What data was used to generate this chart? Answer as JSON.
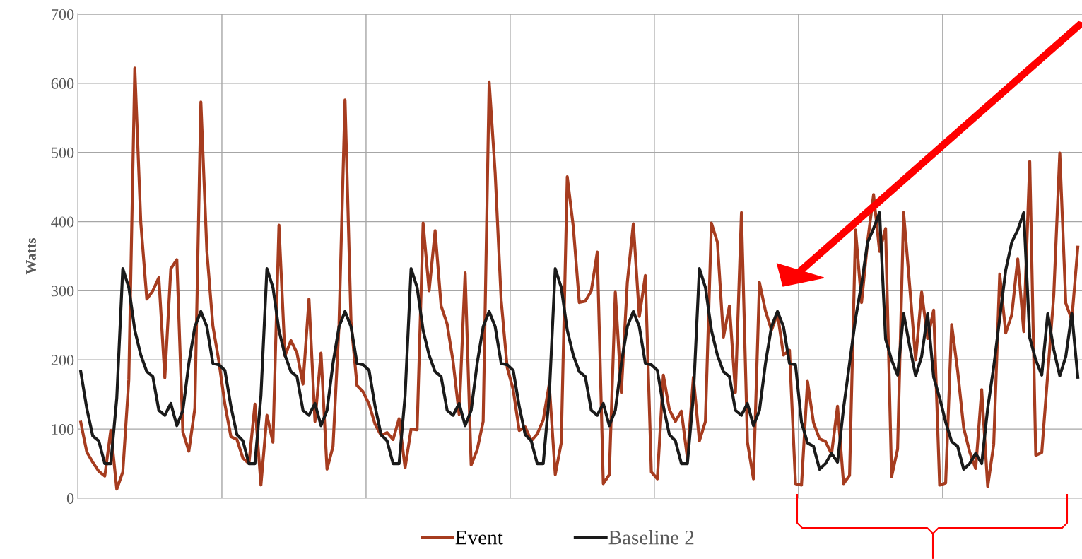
{
  "chart_data": {
    "type": "line",
    "ylabel": "Watts",
    "categories": [
      null,
      null,
      null,
      null,
      null,
      null,
      null,
      null,
      null,
      null,
      null,
      null,
      null,
      null,
      null,
      null,
      null,
      null,
      null,
      null,
      null,
      null,
      null,
      null,
      null,
      null,
      null,
      null,
      null,
      null,
      null,
      null,
      null,
      null,
      null,
      null,
      null,
      null,
      null,
      null,
      null,
      null,
      null,
      null,
      null,
      null,
      null,
      null,
      null,
      null,
      null,
      null,
      null,
      null,
      null,
      null,
      null,
      null,
      null,
      null,
      null,
      null,
      null,
      null,
      null,
      null,
      null,
      null,
      null,
      null,
      null,
      null,
      null,
      null,
      null,
      null,
      null,
      null,
      null,
      null,
      null,
      null,
      null,
      null,
      null,
      null,
      null,
      null,
      null,
      null,
      null,
      null,
      null,
      null,
      null,
      null,
      null,
      null,
      null,
      null,
      null,
      null,
      null,
      null,
      null,
      null,
      null,
      null,
      null,
      null,
      null,
      null,
      null,
      null,
      null,
      null,
      null,
      null,
      null,
      null,
      null,
      null,
      null,
      null,
      null,
      null,
      null,
      null,
      null,
      null,
      null,
      null,
      null,
      null,
      null,
      null,
      null,
      null,
      null,
      null,
      null,
      null,
      null,
      null,
      null,
      null,
      null,
      null,
      null,
      null,
      null,
      null,
      null,
      null,
      null,
      null,
      null,
      null,
      null,
      null,
      null,
      null,
      null,
      null,
      null,
      null,
      null
    ],
    "series": [
      {
        "name": "Event",
        "color": "#a63c1f",
        "values": [
          110,
          67,
          52,
          39,
          32,
          98,
          13,
          38,
          171,
          622,
          398,
          288,
          300,
          319,
          174,
          332,
          345,
          96,
          68,
          130,
          573,
          357,
          249,
          198,
          136,
          89,
          85,
          58,
          50,
          136,
          19,
          120,
          81,
          395,
          206,
          228,
          210,
          165,
          288,
          111,
          210,
          42,
          75,
          251,
          576,
          255,
          163,
          154,
          136,
          107,
          91,
          95,
          85,
          115,
          44,
          100,
          99,
          398,
          300,
          387,
          278,
          252,
          197,
          121,
          326,
          48,
          70,
          111,
          602,
          470,
          286,
          189,
          157,
          98,
          103,
          83,
          93,
          113,
          165,
          34,
          80,
          465,
          393,
          283,
          285,
          300,
          356,
          21,
          34,
          298,
          153,
          312,
          397,
          263,
          322,
          38,
          28,
          178,
          128,
          111,
          126,
          58,
          175,
          83,
          111,
          398,
          370,
          233,
          278,
          153,
          413,
          81,
          28,
          312,
          271,
          243,
          267,
          207,
          214,
          21,
          19,
          169,
          109,
          86,
          82,
          64,
          133,
          21,
          33,
          388,
          283,
          371,
          439,
          357,
          390,
          31,
          71,
          413,
          308,
          200,
          298,
          231,
          272,
          19,
          22,
          251,
          184,
          102,
          67,
          43,
          157,
          17,
          78,
          324,
          239,
          265,
          346,
          241,
          487,
          62,
          66,
          180,
          294,
          499,
          282,
          258,
          363
        ]
      },
      {
        "name": "Baseline 2",
        "color": "#1a1a1a",
        "values": [
          183,
          130,
          90,
          83,
          50,
          50,
          145,
          332,
          305,
          243,
          207,
          183,
          176,
          127,
          120,
          137,
          105,
          127,
          195,
          248,
          270,
          248,
          195,
          193,
          185,
          133,
          92,
          83,
          50,
          50,
          148,
          332,
          305,
          243,
          207,
          183,
          176,
          127,
          120,
          137,
          105,
          127,
          195,
          248,
          270,
          248,
          195,
          193,
          185,
          133,
          92,
          83,
          50,
          50,
          148,
          332,
          305,
          243,
          207,
          183,
          176,
          127,
          120,
          137,
          105,
          127,
          195,
          248,
          270,
          248,
          195,
          193,
          185,
          133,
          92,
          83,
          50,
          50,
          148,
          332,
          305,
          243,
          207,
          183,
          176,
          127,
          120,
          137,
          105,
          127,
          195,
          248,
          270,
          248,
          195,
          193,
          185,
          133,
          92,
          83,
          50,
          50,
          148,
          332,
          305,
          243,
          207,
          183,
          176,
          127,
          120,
          137,
          105,
          127,
          195,
          248,
          270,
          248,
          195,
          193,
          110,
          80,
          75,
          42,
          50,
          65,
          52,
          130,
          195,
          260,
          310,
          370,
          390,
          413,
          230,
          200,
          178,
          267,
          220,
          177,
          205,
          267,
          175,
          145,
          110,
          82,
          75,
          42,
          50,
          65,
          50,
          130,
          190,
          260,
          330,
          370,
          388,
          413,
          232,
          200,
          178,
          267,
          215,
          177,
          205,
          267,
          175
        ]
      }
    ],
    "ylim": [
      0,
      700
    ],
    "yticks": [
      0,
      100,
      200,
      300,
      400,
      500,
      600,
      700
    ],
    "grid": true,
    "legend": "bottom",
    "marker": "none",
    "line_style": "solid"
  }
}
